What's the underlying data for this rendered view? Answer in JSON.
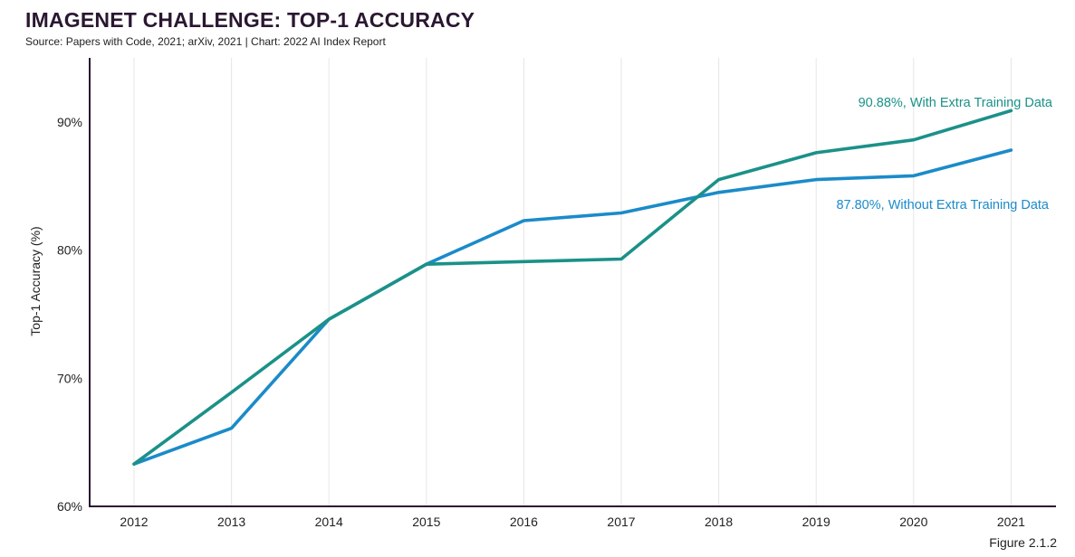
{
  "header": {
    "title": "IMAGENET CHALLENGE: TOP-1 ACCURACY",
    "subtitle": "Source: Papers with Code, 2021; arXiv, 2021 | Chart: 2022 AI Index Report"
  },
  "footer": {
    "figure_label": "Figure 2.1.2"
  },
  "chart_data": {
    "type": "line",
    "title": "IMAGENET CHALLENGE: TOP-1 ACCURACY",
    "xlabel": "",
    "ylabel": "Top-1 Accuracy (%)",
    "x": [
      "2012",
      "2013",
      "2014",
      "2015",
      "2016",
      "2017",
      "2018",
      "2019",
      "2020",
      "2021"
    ],
    "ylim": [
      60,
      95
    ],
    "yticks": [
      60,
      70,
      80,
      90
    ],
    "ytick_labels": [
      "60%",
      "70%",
      "80%",
      "90%"
    ],
    "grid": "vertical",
    "series": [
      {
        "name": "With Extra Training Data",
        "color": "#1b9188",
        "values": [
          63.3,
          68.9,
          74.6,
          78.9,
          79.1,
          79.3,
          85.5,
          87.6,
          88.6,
          90.88
        ],
        "annotation": "90.88%, With Extra Training Data"
      },
      {
        "name": "Without Extra Training Data",
        "color": "#1b8bc9",
        "values": [
          63.3,
          66.1,
          74.6,
          78.9,
          82.3,
          82.9,
          84.5,
          85.5,
          85.8,
          87.8
        ],
        "annotation": "87.80%, Without Extra Training Data"
      }
    ]
  }
}
